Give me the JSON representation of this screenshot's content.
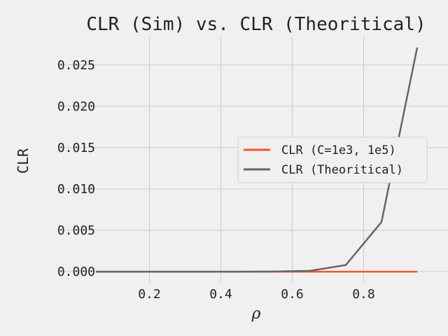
{
  "chart_data": {
    "type": "line",
    "title": "CLR (Sim) vs. CLR (Theoritical)",
    "xlabel": "ρ",
    "ylabel": "CLR",
    "xlim": [
      0.05,
      0.95
    ],
    "ylim": [
      -0.00135,
      0.02845
    ],
    "xticks": [
      0.2,
      0.4,
      0.6,
      0.8
    ],
    "xtick_labels": [
      "0.2",
      "0.4",
      "0.6",
      "0.8"
    ],
    "yticks": [
      0.0,
      0.005,
      0.01,
      0.015,
      0.02,
      0.025
    ],
    "ytick_labels": [
      "0.000",
      "0.005",
      "0.010",
      "0.015",
      "0.020",
      "0.025"
    ],
    "grid": true,
    "legend_position": "center-right",
    "background": "#f0f0f0",
    "grid_color": "#cbcbcb",
    "x": [
      0.05,
      0.15,
      0.25,
      0.35,
      0.45,
      0.55,
      0.65,
      0.75,
      0.85,
      0.95
    ],
    "series": [
      {
        "name": "CLR (C=1e3, 1e5)",
        "color": "#fc4f30",
        "values": [
          0,
          0,
          0,
          0,
          0,
          0,
          0,
          0,
          0,
          0
        ]
      },
      {
        "name": "CLR (Theoritical)",
        "color": "#666666",
        "values": [
          0.0,
          0.0,
          0.0,
          0.0,
          0.0,
          1e-05,
          0.0001,
          0.0008,
          0.006,
          0.0271
        ]
      }
    ]
  }
}
